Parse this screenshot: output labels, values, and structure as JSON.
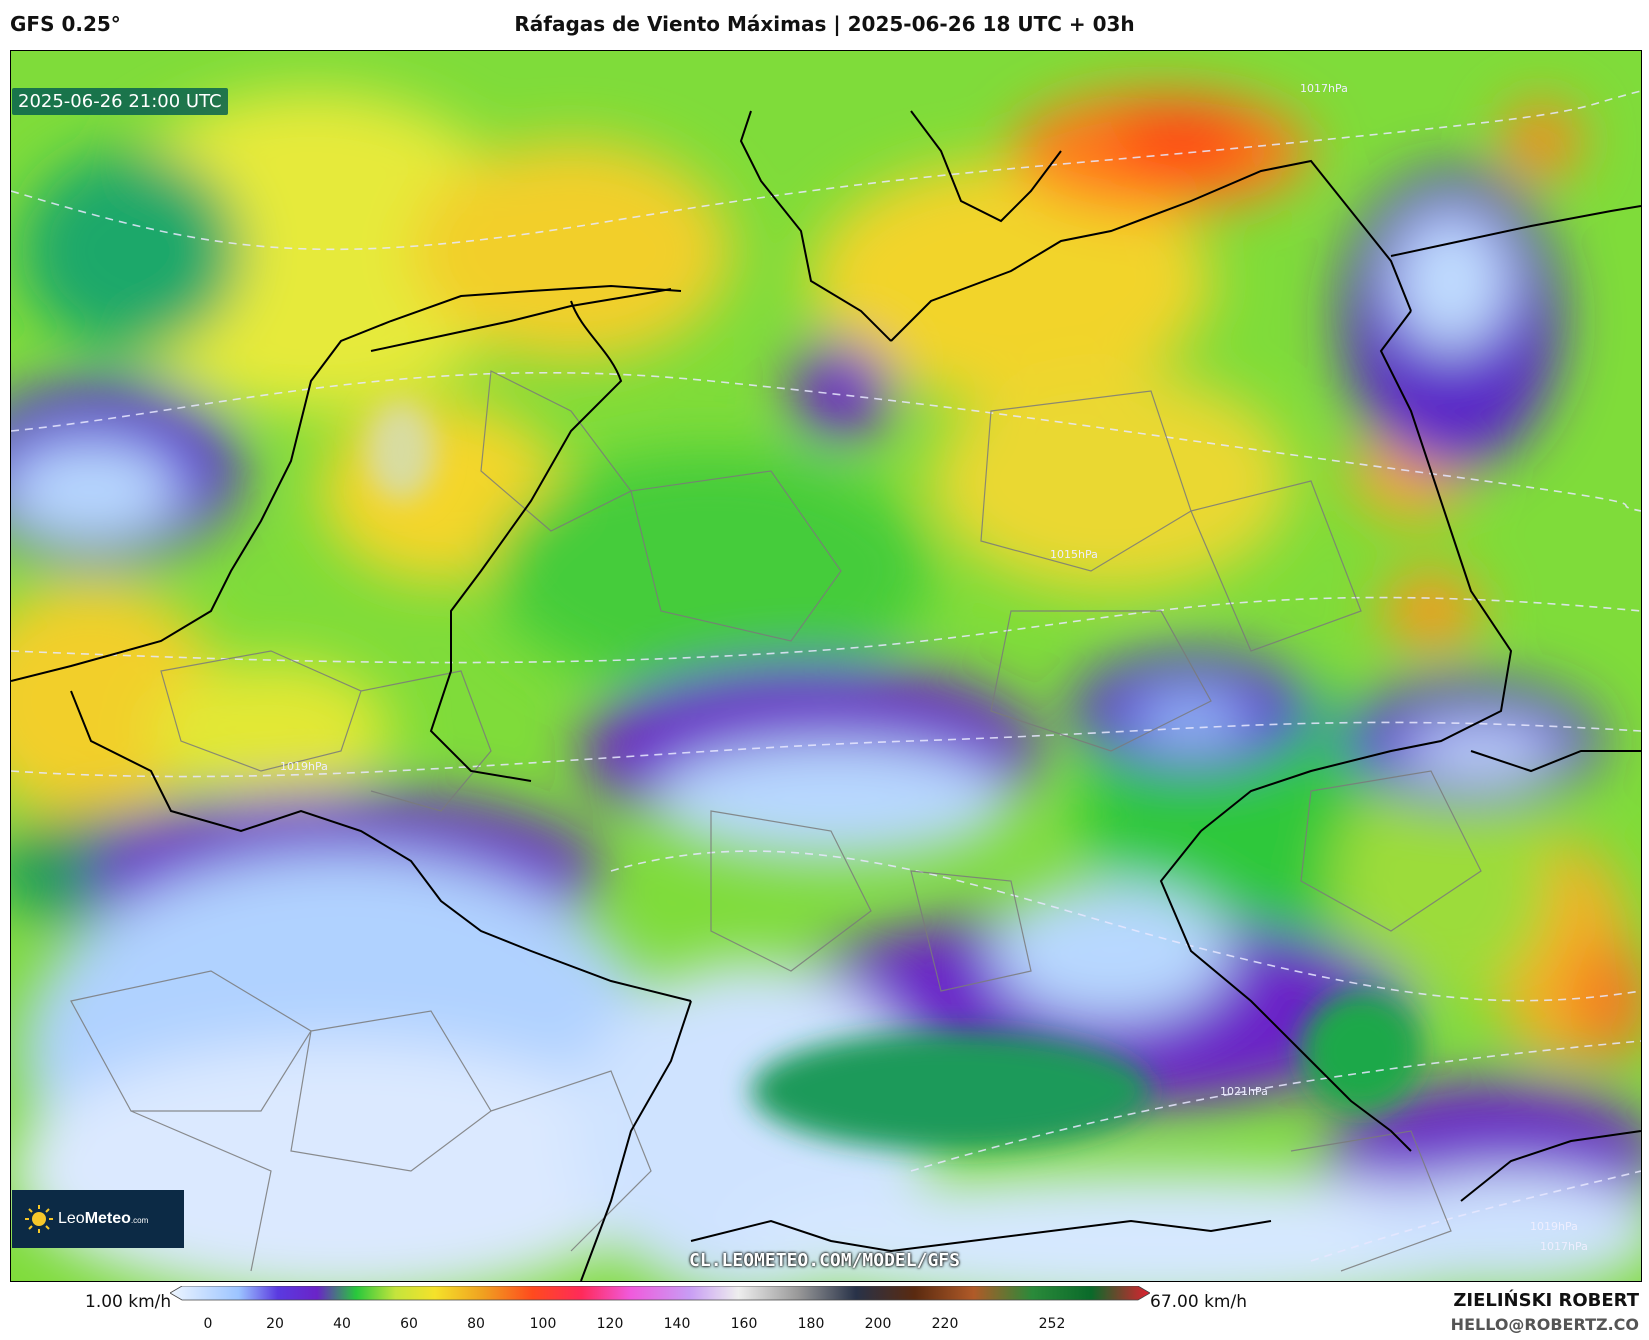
{
  "model_label": "GFS 0.25°",
  "title": "Ráfagas de Viento Máximas | 2025-06-26 18 UTC + 03h",
  "valid_time": "2025-06-26 21:00 UTC",
  "logo": {
    "brand_light": "Leo",
    "brand_bold": "Meteo",
    "suffix": ".com"
  },
  "source_url": "CL.LEOMETEO.COM/MODEL/GFS",
  "colorbar": {
    "min_label": "1.00 km/h",
    "max_label": "67.00 km/h",
    "ticks": [
      "0",
      "20",
      "40",
      "60",
      "80",
      "100",
      "120",
      "140",
      "160",
      "180",
      "200",
      "220",
      "252"
    ]
  },
  "author": "ZIELIŃSKI ROBERT",
  "email": "HELLO@ROBERTZ.CO",
  "map_contour_labels": [
    "1015hPa",
    "1017hPa",
    "1019hPa",
    "1021hPa"
  ],
  "colors": {
    "calm": "#dbe9ff",
    "light_blue": "#9cc4ff",
    "violet": "#6a24c8",
    "green": "#28c83c",
    "yellow_green": "#c4e43c",
    "yellow": "#f4e22a",
    "orange": "#f0a020",
    "red": "#ff4a1e"
  }
}
